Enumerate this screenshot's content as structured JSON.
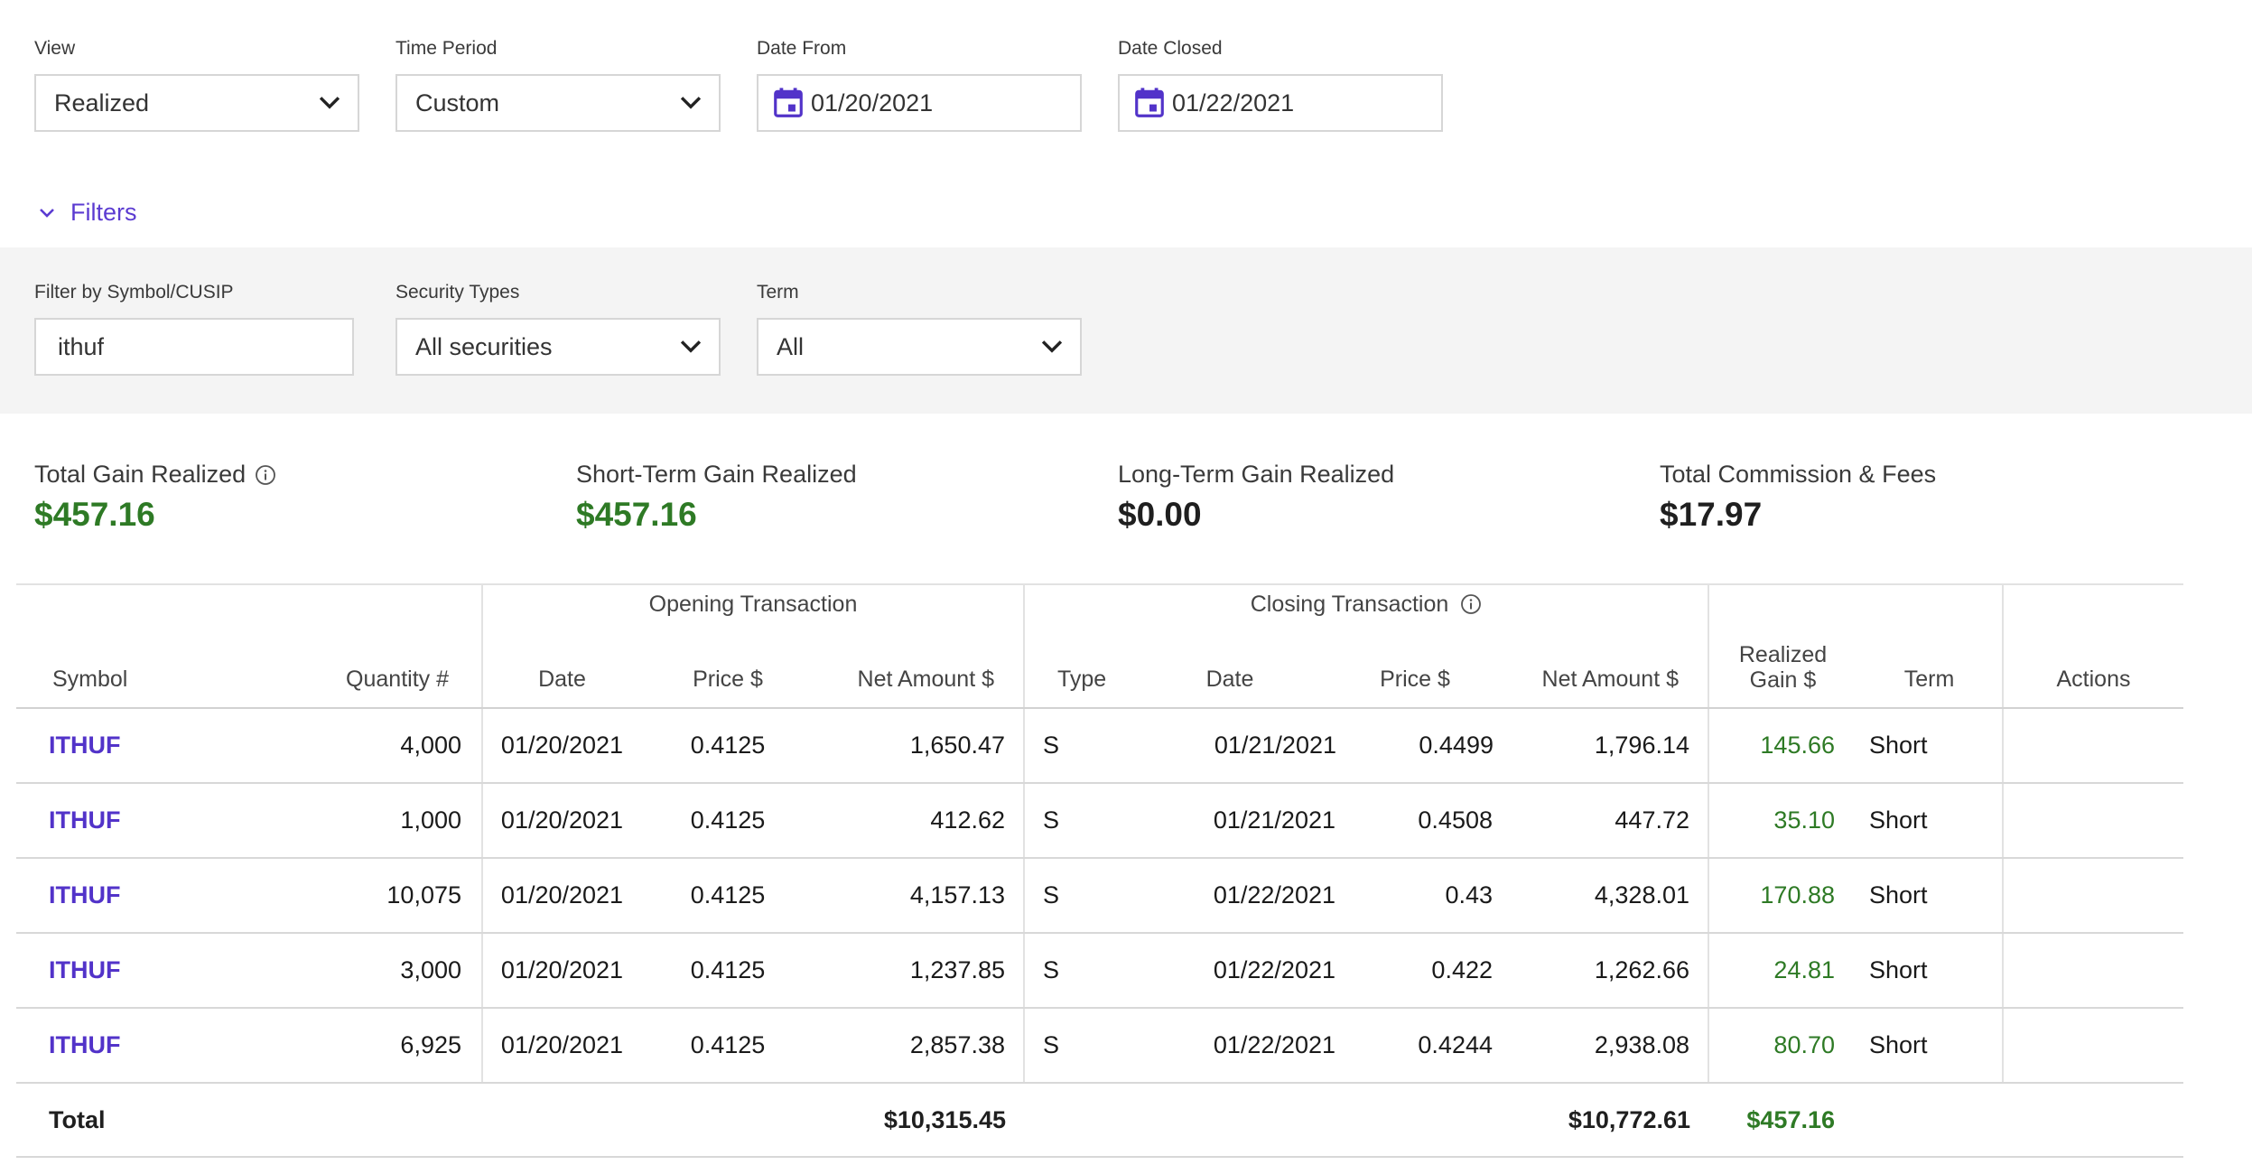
{
  "controls": {
    "view": {
      "label": "View",
      "value": "Realized"
    },
    "time_period": {
      "label": "Time Period",
      "value": "Custom"
    },
    "date_from": {
      "label": "Date From",
      "value": "01/20/2021"
    },
    "date_closed": {
      "label": "Date Closed",
      "value": "01/22/2021"
    }
  },
  "filters_toggle": "Filters",
  "filters": {
    "symbol": {
      "label": "Filter by Symbol/CUSIP",
      "value": "ithuf"
    },
    "security_types": {
      "label": "Security Types",
      "value": "All securities"
    },
    "term": {
      "label": "Term",
      "value": "All"
    }
  },
  "summary": {
    "total_gain": {
      "label": "Total Gain Realized",
      "value": "$457.16"
    },
    "short_term": {
      "label": "Short-Term Gain Realized",
      "value": "$457.16"
    },
    "long_term": {
      "label": "Long-Term Gain Realized",
      "value": "$0.00"
    },
    "commission": {
      "label": "Total Commission & Fees",
      "value": "$17.97"
    }
  },
  "table": {
    "group_opening": "Opening Transaction",
    "group_closing": "Closing Transaction",
    "headers": {
      "symbol": "Symbol",
      "quantity": "Quantity #",
      "open_date": "Date",
      "open_price": "Price $",
      "open_net": "Net Amount $",
      "type": "Type",
      "close_date": "Date",
      "close_price": "Price $",
      "close_net": "Net Amount $",
      "realized_line1": "Realized",
      "realized_line2": "Gain $",
      "term": "Term",
      "actions": "Actions"
    },
    "rows": [
      {
        "symbol": "ITHUF",
        "qty": "4,000",
        "open_date": "01/20/2021",
        "open_price": "0.4125",
        "open_net": "1,650.47",
        "type": "S",
        "close_date": "01/21/2021",
        "close_price": "0.4499",
        "close_net": "1,796.14",
        "gain": "145.66",
        "term": "Short"
      },
      {
        "symbol": "ITHUF",
        "qty": "1,000",
        "open_date": "01/20/2021",
        "open_price": "0.4125",
        "open_net": "412.62",
        "type": "S",
        "close_date": "01/21/2021",
        "close_price": "0.4508",
        "close_net": "447.72",
        "gain": "35.10",
        "term": "Short"
      },
      {
        "symbol": "ITHUF",
        "qty": "10,075",
        "open_date": "01/20/2021",
        "open_price": "0.4125",
        "open_net": "4,157.13",
        "type": "S",
        "close_date": "01/22/2021",
        "close_price": "0.43",
        "close_net": "4,328.01",
        "gain": "170.88",
        "term": "Short"
      },
      {
        "symbol": "ITHUF",
        "qty": "3,000",
        "open_date": "01/20/2021",
        "open_price": "0.4125",
        "open_net": "1,237.85",
        "type": "S",
        "close_date": "01/22/2021",
        "close_price": "0.422",
        "close_net": "1,262.66",
        "gain": "24.81",
        "term": "Short"
      },
      {
        "symbol": "ITHUF",
        "qty": "6,925",
        "open_date": "01/20/2021",
        "open_price": "0.4125",
        "open_net": "2,857.38",
        "type": "S",
        "close_date": "01/22/2021",
        "close_price": "0.4244",
        "close_net": "2,938.08",
        "gain": "80.70",
        "term": "Short"
      }
    ],
    "total": {
      "label": "Total",
      "open_net": "$10,315.45",
      "close_net": "$10,772.61",
      "gain": "$457.16"
    }
  },
  "colors": {
    "accent": "#5233c9",
    "gain_green": "#2e7a25",
    "panel_bg": "#f4f4f4"
  }
}
